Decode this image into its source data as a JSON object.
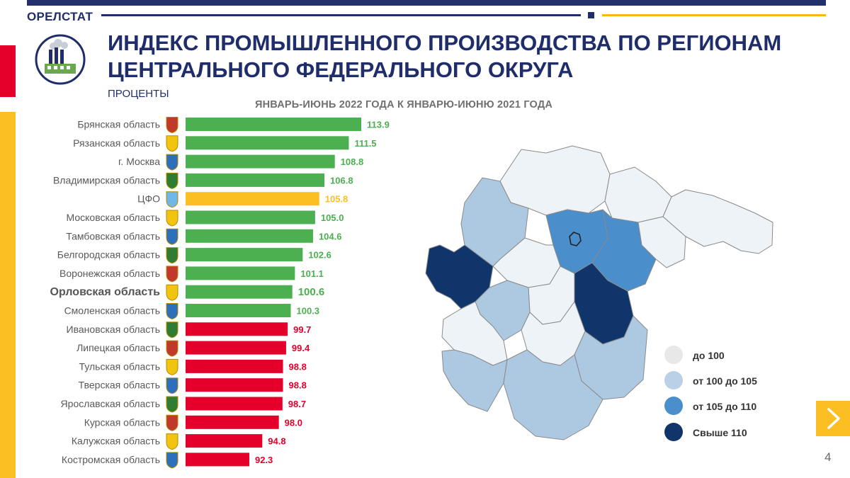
{
  "header": {
    "brand": "ОРЕЛСТАТ",
    "title_line1": "ИНДЕКС ПРОМЫШЛЕННОГО ПРОИЗВОДСТВА ПО РЕГИОНАМ",
    "title_line2": "ЦЕНТРАЛЬНОГО ФЕДЕРАЛЬНОГО ОКРУГА",
    "subtitle": "ПРОЦЕНТЫ",
    "period": "ЯНВАРЬ-ИЮНЬ 2022 ГОДА К ЯНВАРЮ-ИЮНЮ 2021 ГОДА"
  },
  "colors": {
    "above_100": "#4caf50",
    "district": "#fbbf24",
    "below_100": "#e4002b",
    "navy": "#1f2d6b",
    "map_upto_100": "#eef3f8",
    "map_100_105": "#adc9e2",
    "map_105_110": "#4a8ecb",
    "map_over_110": "#10356b"
  },
  "chart_data": {
    "type": "bar",
    "orientation": "horizontal",
    "categories": [
      "Брянская область",
      "Рязанская область",
      "г. Москва",
      "Владимирская область",
      "ЦФО",
      "Московская область",
      "Тамбовская область",
      "Белгородская область",
      "Воронежская область",
      "Орловская область",
      "Смоленская область",
      "Ивановская область",
      "Липецкая область",
      "Тульская область",
      "Тверская область",
      "Ярославская область",
      "Курская область",
      "Калужская область",
      "Костромская область"
    ],
    "values": [
      113.9,
      111.5,
      108.8,
      106.8,
      105.8,
      105.0,
      104.6,
      102.6,
      101.1,
      100.6,
      100.3,
      99.7,
      99.4,
      98.8,
      98.8,
      98.7,
      98.0,
      94.8,
      92.3
    ],
    "value_labels": [
      "113.9",
      "111.5",
      "108.8",
      "106.8",
      "105.8",
      "105.0",
      "104.6",
      "102.6",
      "101.1",
      "100.6",
      "100.3",
      "99.7",
      "99.4",
      "98.8",
      "98.8",
      "98.7",
      "98.0",
      "94.8",
      "92.3"
    ],
    "highlight": "Орловская область",
    "district": "ЦФО",
    "xlim": [
      80,
      115
    ]
  },
  "legend": [
    {
      "label": "до 100",
      "color": "#eef3f8"
    },
    {
      "label": "от 100 до 105",
      "color": "#adc9e2"
    },
    {
      "label": "от 105 до 110",
      "color": "#4a8ecb"
    },
    {
      "label": "Свыше 110",
      "color": "#10356b"
    }
  ],
  "footer": {
    "page_number": "4"
  }
}
